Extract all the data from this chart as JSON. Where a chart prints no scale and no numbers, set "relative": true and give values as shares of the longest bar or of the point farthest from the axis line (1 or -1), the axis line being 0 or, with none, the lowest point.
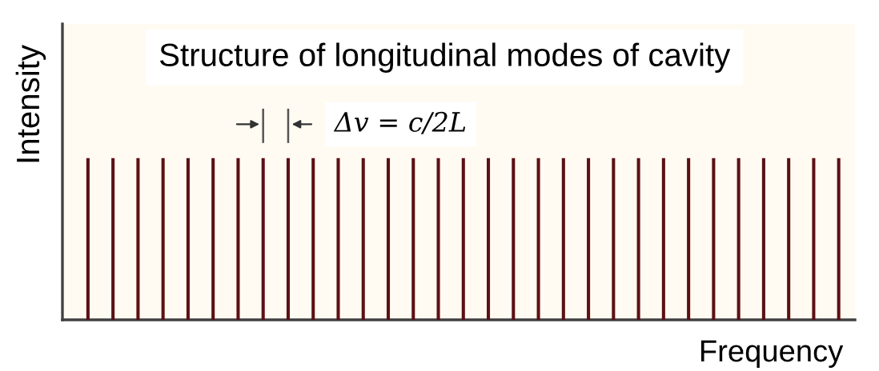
{
  "chart_data": {
    "type": "bar",
    "title": "Structure of longitudinal modes of cavity",
    "xlabel": "Frequency",
    "ylabel": "Intensity",
    "annotations": [
      "Δv = c/2L"
    ],
    "categories": [
      null,
      null,
      null,
      null,
      null,
      null,
      null,
      null,
      null,
      null,
      null,
      null,
      null,
      null,
      null,
      null,
      null,
      null,
      null,
      null,
      null,
      null,
      null,
      null,
      null,
      null,
      null,
      null,
      null,
      null,
      null
    ],
    "values": [
      1,
      1,
      1,
      1,
      1,
      1,
      1,
      1,
      1,
      1,
      1,
      1,
      1,
      1,
      1,
      1,
      1,
      1,
      1,
      1,
      1,
      1,
      1,
      1,
      1,
      1,
      1,
      1,
      1,
      1,
      1
    ],
    "color": "#5c1014",
    "relative": true
  }
}
